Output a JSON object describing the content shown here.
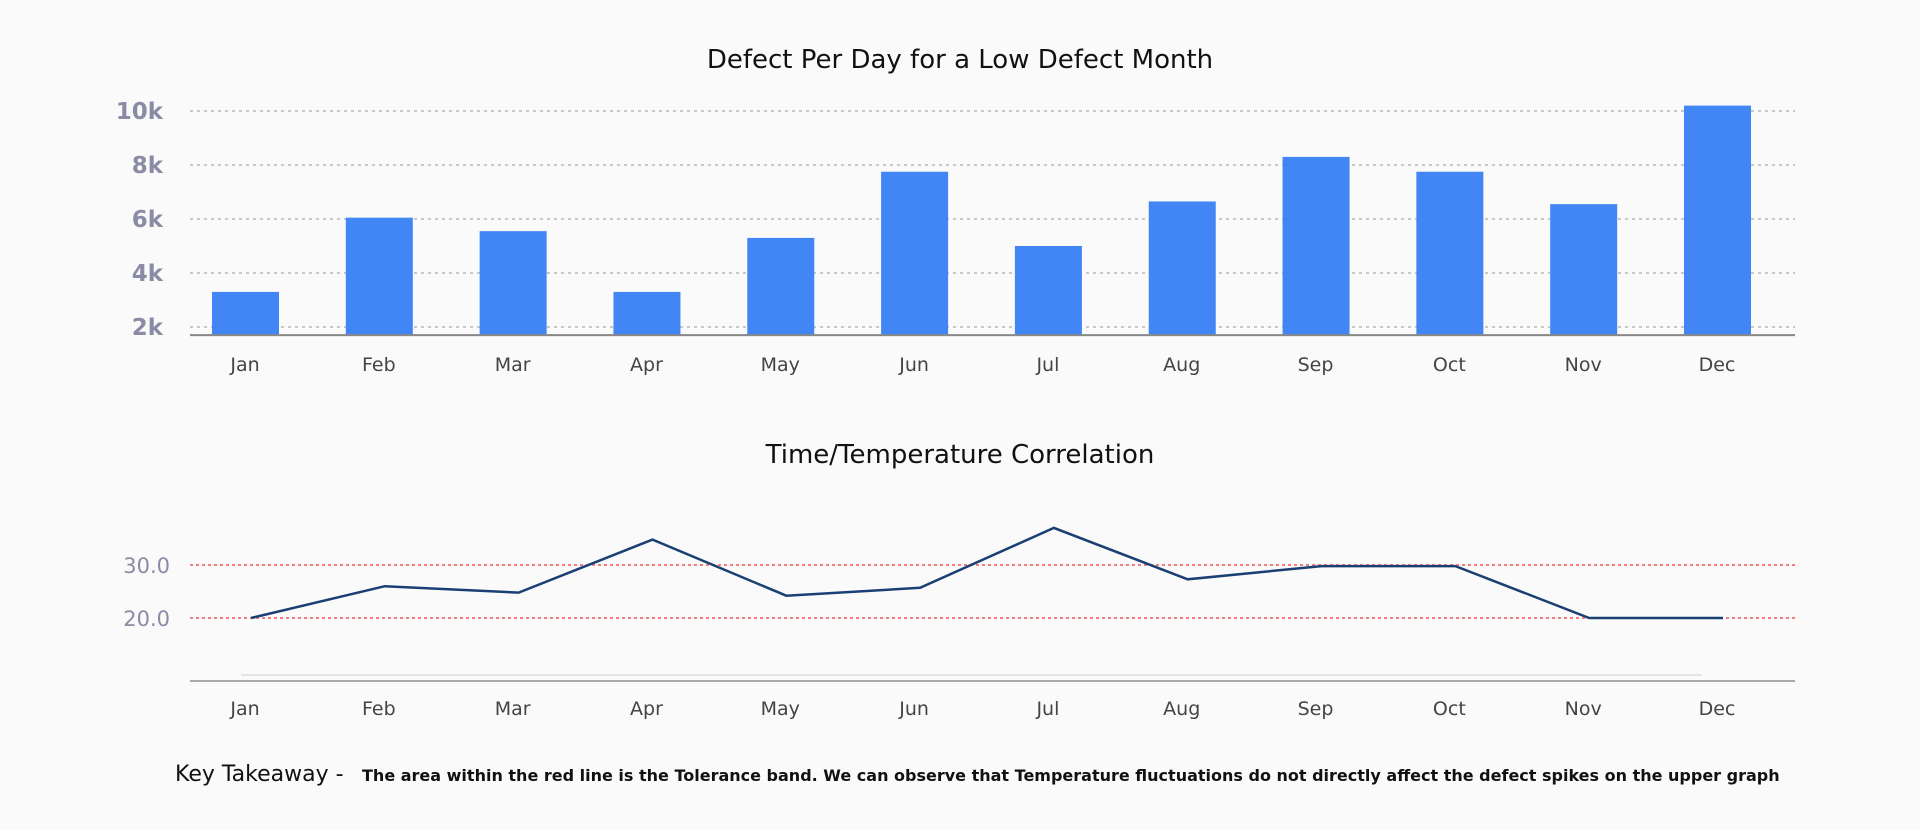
{
  "chart_data": [
    {
      "type": "bar",
      "title": "Defect Per Day for a Low Defect Month",
      "categories": [
        "Jan",
        "Feb",
        "Mar",
        "Apr",
        "May",
        "Jun",
        "Jul",
        "Aug",
        "Sep",
        "Oct",
        "Nov",
        "Dec"
      ],
      "values": [
        3300,
        6050,
        5550,
        3300,
        5300,
        7750,
        5000,
        6650,
        8300,
        7750,
        6550,
        10200
      ],
      "yticks": [
        {
          "v": 2000,
          "label": "2k"
        },
        {
          "v": 4000,
          "label": "4k"
        },
        {
          "v": 6000,
          "label": "6k"
        },
        {
          "v": 8000,
          "label": "8k"
        },
        {
          "v": 10000,
          "label": "10k"
        }
      ],
      "ylim": [
        1700,
        10000
      ],
      "grid": true,
      "color": "#4285f4"
    },
    {
      "type": "line",
      "title": "Time/Temperature Correlation",
      "categories": [
        "Jan",
        "Feb",
        "Mar",
        "Apr",
        "May",
        "Jun",
        "Jul",
        "Aug",
        "Sep",
        "Oct",
        "Nov",
        "Dec"
      ],
      "values": [
        20,
        26,
        24.8,
        34.8,
        24.2,
        25.7,
        37,
        27.3,
        29.8,
        29.8,
        20,
        20
      ],
      "yticks": [
        {
          "v": 20,
          "label": "20.0"
        },
        {
          "v": 30,
          "label": "30.0"
        }
      ],
      "reference_lines": [
        20,
        30
      ],
      "reference_color": "#f47c7c",
      "ylim": [
        8.4,
        30
      ],
      "color": "#1a3f73"
    }
  ],
  "note": {
    "label": "Key Takeaway -",
    "text": "The area within the red line is the Tolerance band. We can observe that Temperature fluctuations do not directly affect the defect spikes on the upper graph"
  }
}
